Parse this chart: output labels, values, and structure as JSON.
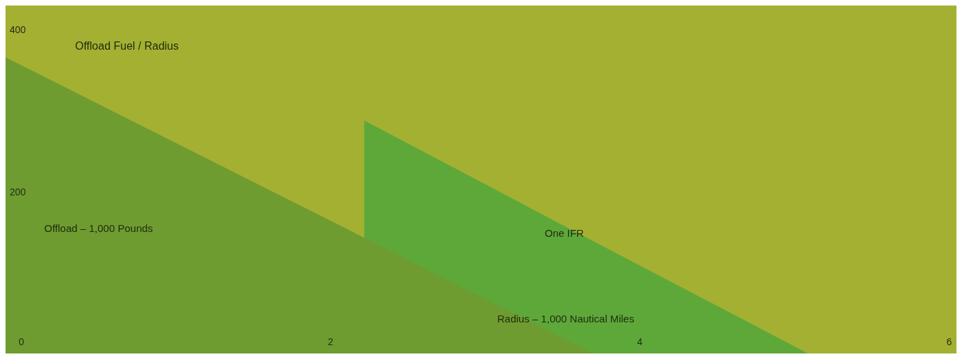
{
  "chart_data": {
    "type": "area",
    "title": "Offload Fuel / Radius",
    "xlabel": "Radius – 1,000 Nautical Miles",
    "ylabel": "Offload – 1,000 Pounds",
    "xlim": [
      -0.1,
      6.05
    ],
    "ylim": [
      0,
      430
    ],
    "xticks": [
      0,
      2,
      4,
      6
    ],
    "yticks": [
      200,
      400
    ],
    "grid": false,
    "series": [
      {
        "name": "One IFR",
        "color": "#5ea83a",
        "x": [
          2.22,
          3.5,
          5.09
        ],
        "values": [
          288,
          159,
          0
        ]
      },
      {
        "color": "#6f9c30",
        "x": [
          -0.1,
          2.22,
          3.7
        ],
        "values": [
          366,
          143,
          0
        ]
      }
    ]
  }
}
